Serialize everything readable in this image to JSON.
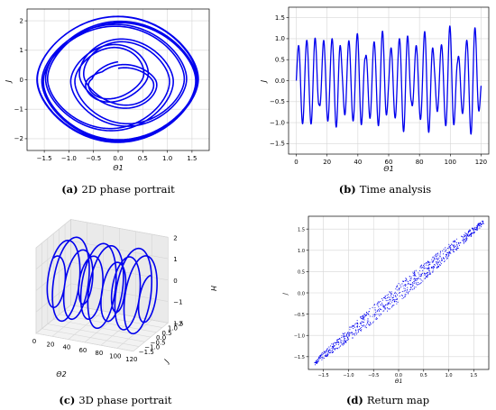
{
  "chart_data": [
    {
      "panel": "a",
      "type": "line",
      "caption_letter": "(a)",
      "caption_text": "2D phase portrait",
      "xlabel": "Θ1",
      "ylabel": "J",
      "xlim": [
        -1.85,
        1.85
      ],
      "ylim": [
        -2.4,
        2.4
      ],
      "xticks": [
        -1.5,
        -1.0,
        -0.5,
        0.0,
        0.5,
        1.0,
        1.5
      ],
      "xtick_labels": [
        "−1.5",
        "−1.0",
        "−0.5",
        "0.0",
        "0.5",
        "1.0",
        "1.5"
      ],
      "yticks": [
        -2,
        -1,
        0,
        1,
        2
      ],
      "ytick_labels": [
        "−2",
        "−1",
        "0",
        "1",
        "2"
      ],
      "grid": true,
      "series": [
        {
          "color": "#0000ee",
          "x_amplitude": 1.65,
          "y_amplitude": 2.15
        }
      ]
    },
    {
      "panel": "b",
      "type": "line",
      "caption_letter": "(b)",
      "caption_text": "Time analysis",
      "xlabel": "Θ1",
      "ylabel": "J",
      "xlim": [
        -5,
        125
      ],
      "ylim": [
        -1.75,
        1.75
      ],
      "xticks": [
        0,
        20,
        40,
        60,
        80,
        100,
        120
      ],
      "xtick_labels": [
        "0",
        "20",
        "40",
        "60",
        "80",
        "100",
        "120"
      ],
      "yticks": [
        -1.5,
        -1.0,
        -0.5,
        0.0,
        0.5,
        1.0,
        1.5
      ],
      "ytick_labels": [
        "−1.5",
        "−1.0",
        "−0.5",
        "0.0",
        "0.5",
        "1.0",
        "1.5"
      ],
      "grid": true,
      "series": [
        {
          "color": "#0000ee",
          "x_range": [
            0,
            120
          ],
          "amplitude": 1.6
        }
      ]
    },
    {
      "panel": "c",
      "type": "line",
      "caption_letter": "(c)",
      "caption_text": "3D phase portrait",
      "xlabel": "Θ2",
      "ylabel": "J",
      "zlabel": "H",
      "xtick_labels": [
        "0",
        "20",
        "40",
        "60",
        "80",
        "100",
        "120"
      ],
      "ytick_labels": [
        "1.5",
        "1.0",
        "0.5",
        "0.0",
        "−0.5",
        "−1.0",
        "−1.5"
      ],
      "ztick_labels": [
        "2",
        "1",
        "0",
        "−1",
        "−2"
      ],
      "grid": true,
      "series": [
        {
          "color": "#0000ee",
          "x_range": [
            0,
            120
          ],
          "y_amplitude": 1.5,
          "z_amplitude": 2.1
        }
      ]
    },
    {
      "panel": "d",
      "type": "scatter",
      "caption_letter": "(d)",
      "caption_text": "Return map",
      "xlabel": "Θ1",
      "ylabel": "J",
      "xlim": [
        -1.8,
        1.8
      ],
      "ylim": [
        -1.8,
        1.8
      ],
      "xticks": [
        -1.5,
        -1.0,
        -0.5,
        0.0,
        0.5,
        1.0,
        1.5
      ],
      "xtick_labels": [
        "−1.5",
        "−1.0",
        "−0.5",
        "0.0",
        "0.5",
        "1.0",
        "1.5"
      ],
      "yticks": [
        -1.5,
        -1.0,
        -0.5,
        0.0,
        0.5,
        1.0,
        1.5
      ],
      "ytick_labels": [
        "−1.5",
        "−1.0",
        "−0.5",
        "0.0",
        "0.5",
        "1.0",
        "1.5"
      ],
      "grid": true,
      "series": [
        {
          "color": "#0000ee",
          "point_count": 900,
          "spread": 0.22
        }
      ]
    }
  ]
}
